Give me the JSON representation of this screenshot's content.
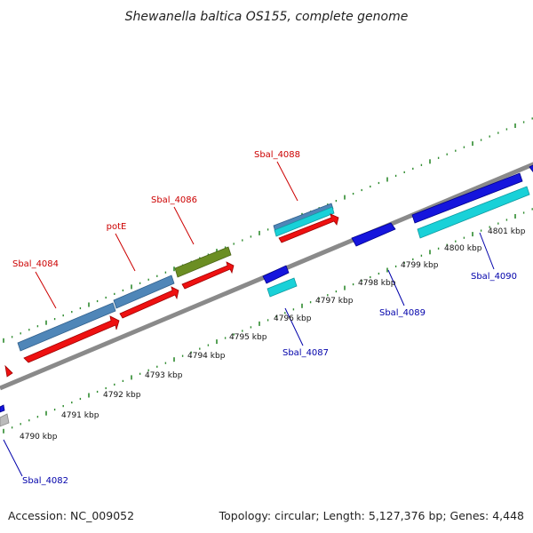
{
  "title": "Shewanella baltica OS155, complete genome",
  "footer": {
    "accession": "Accession: NC_009052",
    "topology": "Topology: circular; Length: 5,127,376 bp; Genes: 4,448"
  },
  "colors": {
    "backbone": "#8a8a8a",
    "tick": "#2e8b2e",
    "label_top": "#cc0000",
    "label_bottom": "#0000aa",
    "steelblue": "#4f86b8",
    "red": "#ee1111",
    "olive": "#6b8e23",
    "blue": "#1515dd",
    "cyan": "#19d1d8",
    "gray": "#bbbbbb"
  },
  "kbp_labels": [
    "4790 kbp",
    "4791 kbp",
    "4792 kbp",
    "4793 kbp",
    "4794 kbp",
    "4795 kbp",
    "4796 kbp",
    "4797 kbp",
    "4798 kbp",
    "4799 kbp",
    "4800 kbp",
    "4801 kbp"
  ],
  "gene_labels": {
    "Sbal_4082": "Sbal_4082",
    "Sbal_4084": "Sbal_4084",
    "potE": "potE",
    "Sbal_4086": "Sbal_4086",
    "Sbal_4087": "Sbal_4087",
    "Sbal_4088": "Sbal_4088",
    "Sbal_4089": "Sbal_4089",
    "Sbal_4090": "Sbal_4090"
  }
}
